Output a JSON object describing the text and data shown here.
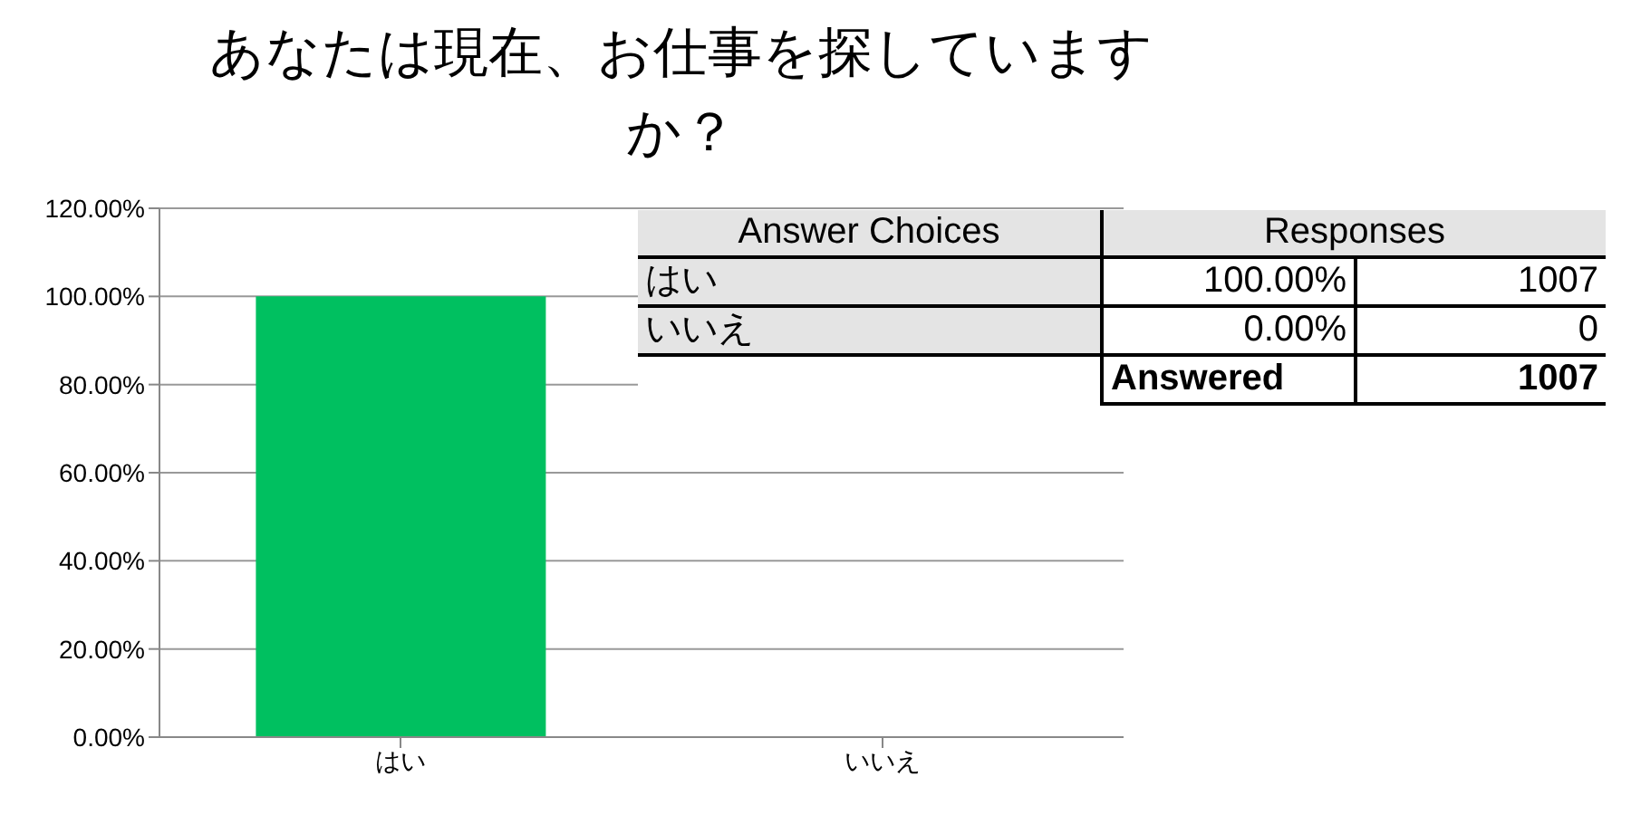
{
  "chart_data": {
    "type": "bar",
    "title": "あなたは現在、お仕事を探していますか？",
    "categories": [
      "はい",
      "いいえ"
    ],
    "values": [
      100,
      0
    ],
    "color": "#00c060",
    "ylim": [
      0,
      120
    ],
    "yticks": [
      {
        "value": 0,
        "label": "0.00%"
      },
      {
        "value": 20,
        "label": "20.00%"
      },
      {
        "value": 40,
        "label": "40.00%"
      },
      {
        "value": 60,
        "label": "60.00%"
      },
      {
        "value": 80,
        "label": "80.00%"
      },
      {
        "value": 100,
        "label": "100.00%"
      },
      {
        "value": 120,
        "label": "120.00%"
      }
    ],
    "grid": "y",
    "annotations": [
      "Answer Choices",
      "Responses",
      "100.00%",
      "1007",
      "0.00%",
      "0",
      "Answered",
      "1007"
    ]
  }
}
